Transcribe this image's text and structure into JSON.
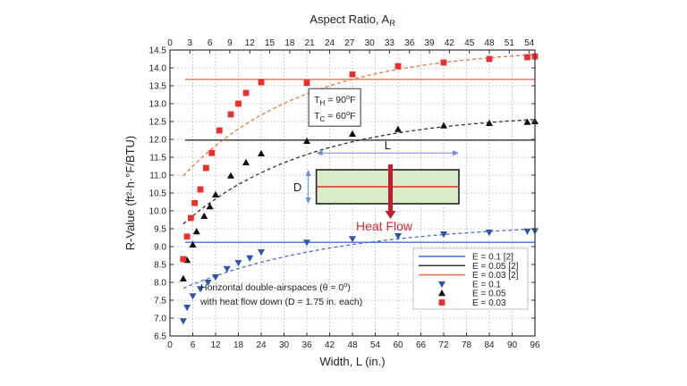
{
  "chart_data": {
    "type": "scatter",
    "title": "",
    "xlabel": "Width, L (in.)",
    "ylabel": "R-Value (ft²·h·°F/BTU)",
    "x2label": "Aspect Ratio, A",
    "x2label_sub": "R",
    "xlim": [
      0,
      96
    ],
    "ylim": [
      6.5,
      14.5
    ],
    "xticks": [
      0,
      6,
      12,
      18,
      24,
      30,
      36,
      42,
      48,
      54,
      60,
      66,
      72,
      78,
      84,
      90,
      96
    ],
    "yticks": [
      6.5,
      7.0,
      7.5,
      8.0,
      8.5,
      9.0,
      9.5,
      10.0,
      10.5,
      11.0,
      11.5,
      12.0,
      12.5,
      13.0,
      13.5,
      14.0,
      14.5
    ],
    "x2ticks": [
      0,
      3,
      6,
      9,
      12,
      15,
      18,
      21,
      24,
      27,
      30,
      33,
      36,
      39,
      42,
      45,
      48,
      51,
      54
    ],
    "x2_per_x": 0.5714,
    "grid": true,
    "legend_position": "bottom-right",
    "reference_lines": [
      {
        "name": "E = 0.1 [2]",
        "y": 9.12,
        "color": "#4a6fc9"
      },
      {
        "name": "E = 0.05 [2]",
        "y": 11.98,
        "color": "#333333"
      },
      {
        "name": "E = 0.03 [2]",
        "y": 13.68,
        "color": "#ef7044"
      }
    ],
    "series": [
      {
        "name": "E = 0.1",
        "marker": "triangle-down",
        "color": "#2f55a8",
        "fit_color": "#4a6fc9",
        "x": [
          3.5,
          4.5,
          6,
          8,
          10,
          12,
          15,
          18,
          21,
          24,
          36,
          48,
          60,
          72,
          84,
          94,
          96
        ],
        "y": [
          6.92,
          7.3,
          7.62,
          7.82,
          8.0,
          8.15,
          8.38,
          8.55,
          8.68,
          8.85,
          9.12,
          9.22,
          9.3,
          9.35,
          9.4,
          9.43,
          9.44
        ]
      },
      {
        "name": "E = 0.05",
        "marker": "triangle-up",
        "color": "#111111",
        "fit_color": "#333333",
        "x": [
          3.5,
          4.5,
          6,
          7,
          9,
          10.5,
          12,
          16,
          20,
          24,
          36,
          48,
          60,
          72,
          84,
          94,
          96
        ],
        "y": [
          8.1,
          8.62,
          9.05,
          9.42,
          9.85,
          10.12,
          10.45,
          10.98,
          11.35,
          11.6,
          11.95,
          12.15,
          12.28,
          12.38,
          12.45,
          12.48,
          12.5
        ]
      },
      {
        "name": "E = 0.03",
        "marker": "square",
        "color": "#e8302f",
        "fit_color": "#ef7044",
        "x": [
          3.5,
          4.5,
          5.5,
          6.5,
          8,
          9.5,
          11,
          13,
          16,
          18,
          20,
          24,
          36,
          48,
          60,
          72,
          84,
          94,
          96
        ],
        "y": [
          8.65,
          9.28,
          9.8,
          10.22,
          10.6,
          11.2,
          11.62,
          12.25,
          12.7,
          13.0,
          13.3,
          13.6,
          13.58,
          13.82,
          14.05,
          14.15,
          14.25,
          14.3,
          14.32
        ]
      }
    ],
    "annotations": {
      "temps": [
        "T",
        "H",
        " = 90",
        "o",
        "F",
        "T",
        "C",
        " = 60",
        "o",
        "F"
      ],
      "dimension_width": "L",
      "dimension_depth": "D",
      "heat_flow": "Heat Flow",
      "note_line1": [
        "Horizontal double-airspaces (θ = 0",
        "o",
        ")"
      ],
      "note_line2": "with heat flow down (D = 1.75 in. each)"
    }
  }
}
